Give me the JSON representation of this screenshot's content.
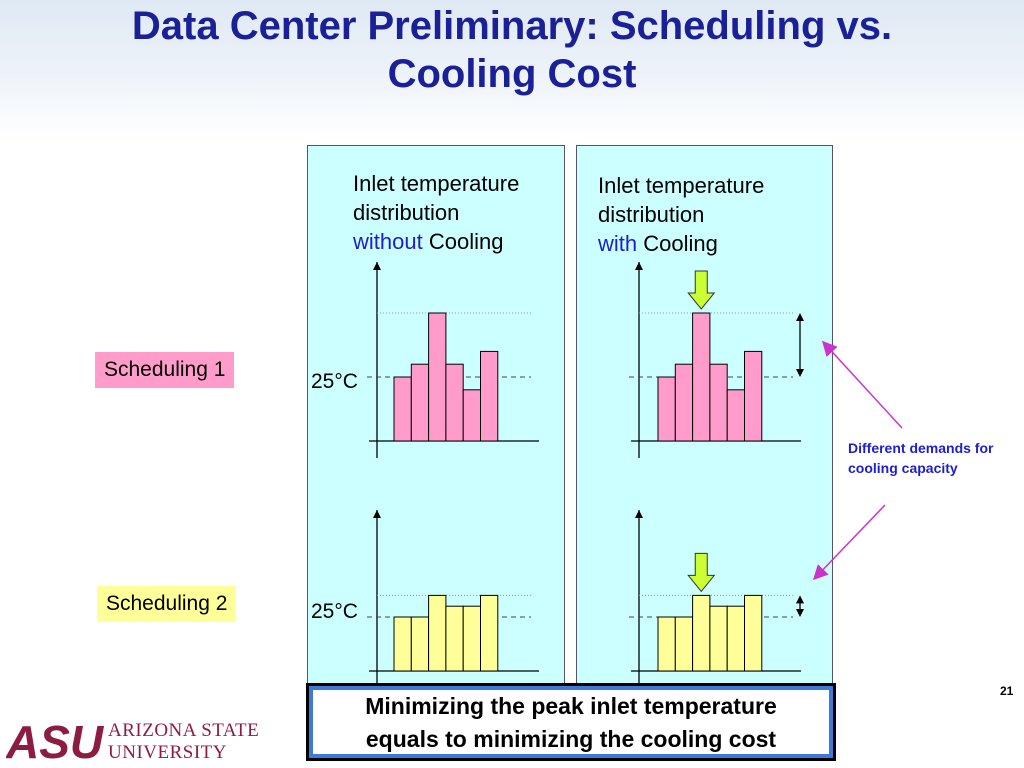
{
  "slide": {
    "title_line1": "Data Center Preliminary: Scheduling vs.",
    "title_line2": "Cooling Cost",
    "page_number": "21"
  },
  "panels": {
    "left": {
      "line1": "Inlet temperature",
      "line2": "distribution",
      "keyword": "without",
      "suffix": " Cooling"
    },
    "right": {
      "line1": "Inlet temperature",
      "line2": "distribution",
      "keyword": "with",
      "suffix": " Cooling"
    }
  },
  "rows": [
    {
      "label": "Scheduling 1",
      "temp_label": "25°C",
      "color": "#ff9ccb",
      "bars_without": [
        5,
        6,
        10,
        6,
        4,
        7
      ],
      "bars_with": [
        5,
        6,
        10,
        6,
        4,
        7
      ]
    },
    {
      "label": "Scheduling 2",
      "temp_label": "25°C",
      "color": "#ffff99",
      "bars_without": [
        5,
        5,
        7,
        6,
        6,
        7
      ],
      "bars_with": [
        5,
        5,
        7,
        6,
        6,
        7
      ]
    }
  ],
  "annotation": {
    "text": "Different demands for cooling capacity",
    "color": "#1d1dd1"
  },
  "callout": {
    "line1": "Minimizing the peak inlet temperature",
    "line2": "equals to minimizing the cooling cost"
  },
  "logo": {
    "mark": "ASU",
    "line1": "ARIZONA STATE",
    "line2": "UNIVERSITY",
    "color": "#8c1d40"
  }
}
